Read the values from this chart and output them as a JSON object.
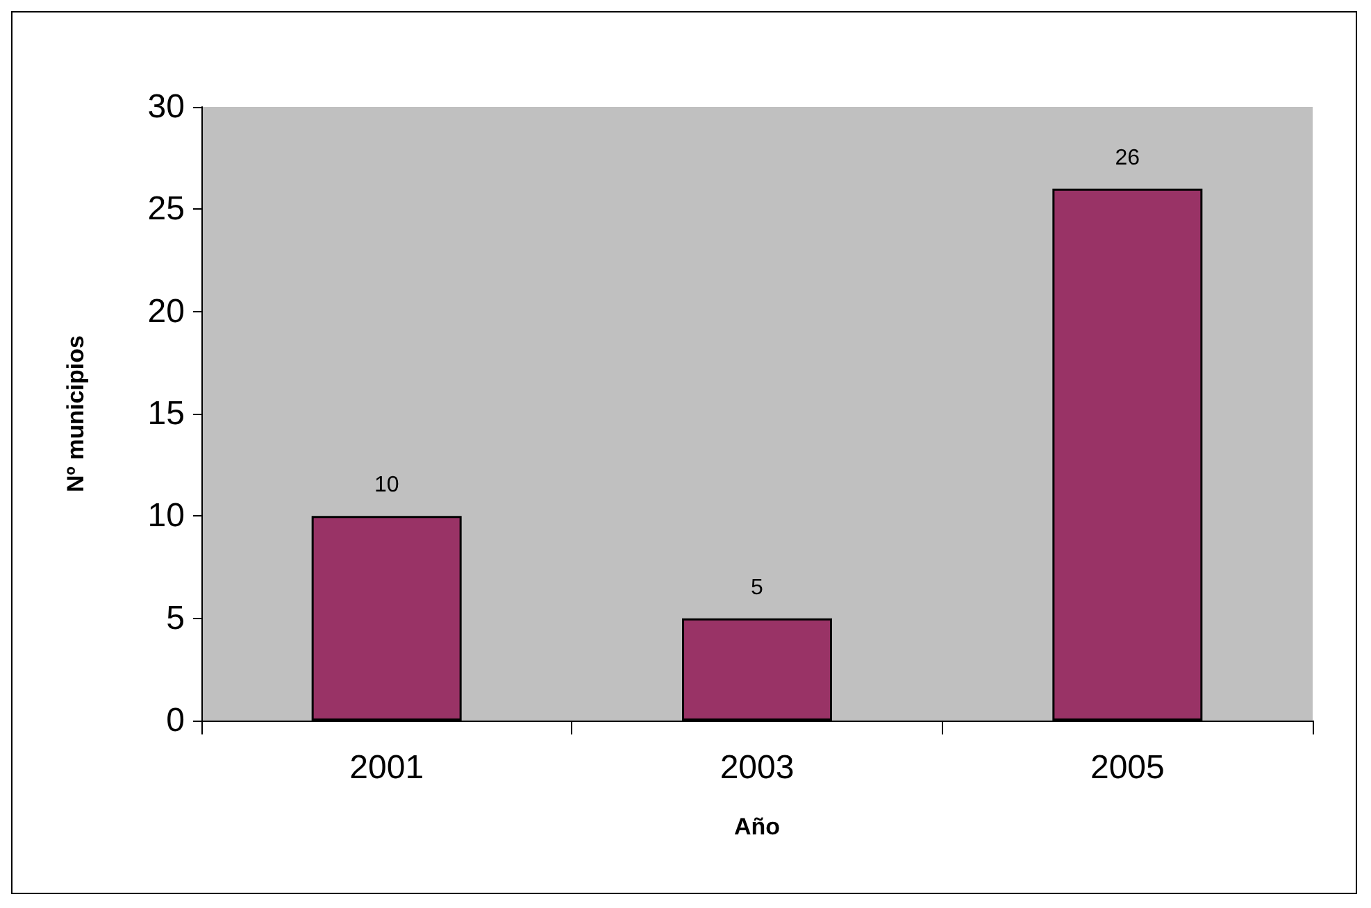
{
  "chart_data": {
    "type": "bar",
    "xlabel": "Año",
    "ylabel": "Nº municipios",
    "categories": [
      "2001",
      "2003",
      "2005"
    ],
    "values": [
      10,
      5,
      26
    ],
    "color": "#993366",
    "ylim": [
      0,
      30
    ],
    "yticks": [
      0,
      5,
      10,
      15,
      20,
      25,
      30
    ],
    "data_labels": true
  }
}
